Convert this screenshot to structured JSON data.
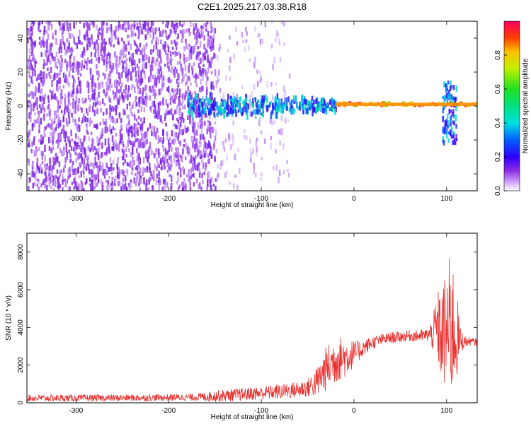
{
  "title": "C2E1.2025.217.03.38.R18",
  "chart_data": [
    {
      "type": "heatmap",
      "xlabel": "Height of straight line (km)",
      "ylabel": "Frequency (Hz)",
      "xlim": [
        -353,
        133
      ],
      "ylim": [
        -50,
        50
      ],
      "xticks": [
        -300,
        -200,
        -100,
        0,
        100
      ],
      "yticks": [
        -40,
        -20,
        0,
        20,
        40
      ],
      "colorbar": {
        "label": "Normalized spectral amplitude",
        "range": [
          0,
          1
        ],
        "ticks": [
          "0.0",
          "0.2",
          "0.4",
          "0.6",
          "0.8"
        ],
        "colormap": "rainbow (violet to red)"
      },
      "regions": [
        {
          "x": [
            -353,
            -150
          ],
          "freq": [
            -50,
            50
          ],
          "amplitude": 0.1,
          "pattern": "broadband noise"
        },
        {
          "x": [
            -150,
            -70
          ],
          "freq": [
            -50,
            50
          ],
          "amplitude": 0.05,
          "pattern": "sparse noise"
        },
        {
          "x": [
            -180,
            -20
          ],
          "freq": [
            -8,
            8
          ],
          "amplitude": 0.35,
          "pattern": "widening signal"
        },
        {
          "x": [
            -20,
            133
          ],
          "freq": [
            -2,
            3
          ],
          "amplitude": 0.9,
          "pattern": "narrow carrier near 1 Hz"
        },
        {
          "x": [
            95,
            110
          ],
          "freq": [
            -22,
            15
          ],
          "amplitude": 0.3,
          "pattern": "disturbance"
        }
      ]
    },
    {
      "type": "line",
      "xlabel": "Height of straight line (km)",
      "ylabel": "SNR (10 * v/v)",
      "xlim": [
        -353,
        133
      ],
      "ylim": [
        0,
        9000
      ],
      "xticks": [
        -300,
        -200,
        -100,
        0,
        100
      ],
      "yticks": [
        0,
        2000,
        4000,
        6000,
        8000
      ],
      "color": "#e8312f",
      "series": [
        {
          "x": [
            -353,
            -300,
            -250,
            -200,
            -170,
            -150,
            -120,
            -100,
            -80,
            -60,
            -50,
            -40,
            -30,
            -20,
            -10,
            0,
            10,
            20,
            30,
            40,
            50,
            60,
            70,
            80,
            85,
            90,
            95,
            100,
            105,
            110,
            115,
            120,
            125,
            133
          ],
          "y": [
            250,
            250,
            260,
            280,
            300,
            350,
            450,
            520,
            600,
            700,
            800,
            1100,
            1800,
            2300,
            2400,
            2600,
            2900,
            3200,
            3350,
            3450,
            3500,
            3550,
            3550,
            3600,
            3650,
            4000,
            3500,
            3800,
            4200,
            3600,
            3300,
            3250,
            3250,
            3200
          ],
          "noise": [
            180,
            180,
            180,
            180,
            200,
            300,
            350,
            350,
            400,
            450,
            500,
            800,
            1200,
            1300,
            1100,
            700,
            450,
            350,
            300,
            300,
            300,
            300,
            320,
            350,
            900,
            2000,
            2600,
            3400,
            4000,
            2800,
            700,
            300,
            250,
            200
          ]
        }
      ]
    }
  ]
}
